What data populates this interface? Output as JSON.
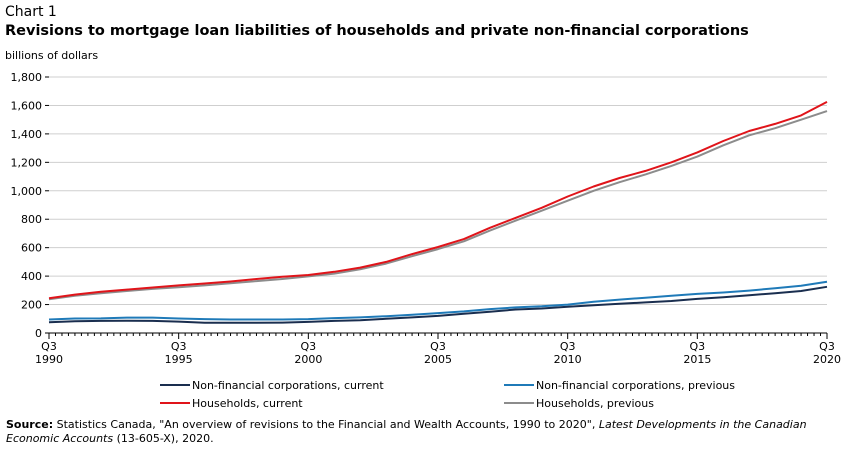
{
  "header": {
    "chart_label": "Chart 1",
    "title": "Revisions to mortgage loan liabilities  of households and private non-financial  corporations",
    "unit": "billions of dollars"
  },
  "footer": {
    "source_label": "Source:",
    "source_text_1": " Statistics Canada, \"An overview of revisions to the Financial and Wealth Accounts, 1990 to 2020\", ",
    "source_italic": "Latest Developments in the Canadian Economic Accounts",
    "source_text_2": " (13-605-X), 2020."
  },
  "chart_data": {
    "type": "line",
    "title": "Revisions to mortgage loan liabilities  of households and private non-financial  corporations",
    "ylabel": "billions of dollars",
    "xlabel": "",
    "ylim": [
      0,
      1800
    ],
    "yticks": [
      0,
      200,
      400,
      600,
      800,
      1000,
      1200,
      1400,
      1600,
      1800
    ],
    "ytick_labels": [
      "0",
      "200",
      "400",
      "600",
      "800",
      "1,000",
      "1,200",
      "1,400",
      "1,600",
      "1,800"
    ],
    "xlim": [
      1990.5,
      2020.5
    ],
    "xticks": [
      {
        "x": 1990.5,
        "line1": "Q3",
        "line2": "1990"
      },
      {
        "x": 1995.5,
        "line1": "Q3",
        "line2": "1995"
      },
      {
        "x": 2000.5,
        "line1": "Q3",
        "line2": "2000"
      },
      {
        "x": 2005.5,
        "line1": "Q3",
        "line2": "2005"
      },
      {
        "x": 2010.5,
        "line1": "Q3",
        "line2": "2010"
      },
      {
        "x": 2015.5,
        "line1": "Q3",
        "line2": "2015"
      },
      {
        "x": 2020.5,
        "line1": "Q3",
        "line2": "2020"
      }
    ],
    "grid": "horizontal",
    "legend_position": "bottom",
    "series": [
      {
        "name": "Non-financial corporations, current",
        "color": "#1a2e4f",
        "x": [
          1990.5,
          1991.5,
          1992.5,
          1993.5,
          1994.5,
          1995.5,
          1996.5,
          1997.5,
          1998.5,
          1999.5,
          2000.5,
          2001.5,
          2002.5,
          2003.5,
          2004.5,
          2005.5,
          2006.5,
          2007.5,
          2008.5,
          2009.5,
          2010.5,
          2011.5,
          2012.5,
          2013.5,
          2014.5,
          2015.5,
          2016.5,
          2017.5,
          2018.5,
          2019.5,
          2020.5
        ],
        "y": [
          75,
          82,
          85,
          86,
          85,
          80,
          72,
          72,
          72,
          73,
          78,
          85,
          90,
          100,
          110,
          120,
          135,
          150,
          165,
          172,
          185,
          195,
          205,
          215,
          225,
          240,
          252,
          265,
          280,
          295,
          325
        ]
      },
      {
        "name": "Non-financial corporations, previous",
        "color": "#1f7ab8",
        "x": [
          1990.5,
          1991.5,
          1992.5,
          1993.5,
          1994.5,
          1995.5,
          1996.5,
          1997.5,
          1998.5,
          1999.5,
          2000.5,
          2001.5,
          2002.5,
          2003.5,
          2004.5,
          2005.5,
          2006.5,
          2007.5,
          2008.5,
          2009.5,
          2010.5,
          2011.5,
          2012.5,
          2013.5,
          2014.5,
          2015.5,
          2016.5,
          2017.5,
          2018.5,
          2019.5,
          2020.5
        ],
        "y": [
          95,
          102,
          103,
          108,
          108,
          102,
          98,
          95,
          95,
          95,
          98,
          105,
          110,
          118,
          128,
          140,
          152,
          168,
          180,
          188,
          200,
          220,
          235,
          248,
          262,
          275,
          285,
          298,
          315,
          332,
          360
        ]
      },
      {
        "name": "Households, current",
        "color": "#e0141a",
        "x": [
          1990.5,
          1991.5,
          1992.5,
          1993.5,
          1994.5,
          1995.5,
          1996.5,
          1997.5,
          1998.5,
          1999.5,
          2000.5,
          2001.5,
          2002.5,
          2003.5,
          2004.5,
          2005.5,
          2006.5,
          2007.5,
          2008.5,
          2009.5,
          2010.5,
          2011.5,
          2012.5,
          2013.5,
          2014.5,
          2015.5,
          2016.5,
          2017.5,
          2018.5,
          2019.5,
          2020.5
        ],
        "y": [
          245,
          270,
          290,
          305,
          320,
          335,
          348,
          362,
          380,
          395,
          408,
          430,
          460,
          500,
          555,
          605,
          660,
          740,
          810,
          880,
          960,
          1030,
          1090,
          1140,
          1200,
          1270,
          1350,
          1420,
          1470,
          1530,
          1625
        ]
      },
      {
        "name": "Households, previous",
        "color": "#8c8c8c",
        "x": [
          1990.5,
          1991.5,
          1992.5,
          1993.5,
          1994.5,
          1995.5,
          1996.5,
          1997.5,
          1998.5,
          1999.5,
          2000.5,
          2001.5,
          2002.5,
          2003.5,
          2004.5,
          2005.5,
          2006.5,
          2007.5,
          2008.5,
          2009.5,
          2010.5,
          2011.5,
          2012.5,
          2013.5,
          2014.5,
          2015.5,
          2016.5,
          2017.5,
          2018.5,
          2019.5,
          2020.5
        ],
        "y": [
          238,
          262,
          280,
          295,
          310,
          322,
          335,
          350,
          365,
          380,
          398,
          418,
          448,
          488,
          540,
          590,
          645,
          720,
          790,
          860,
          930,
          1000,
          1060,
          1115,
          1175,
          1240,
          1320,
          1390,
          1440,
          1500,
          1560
        ]
      }
    ]
  }
}
